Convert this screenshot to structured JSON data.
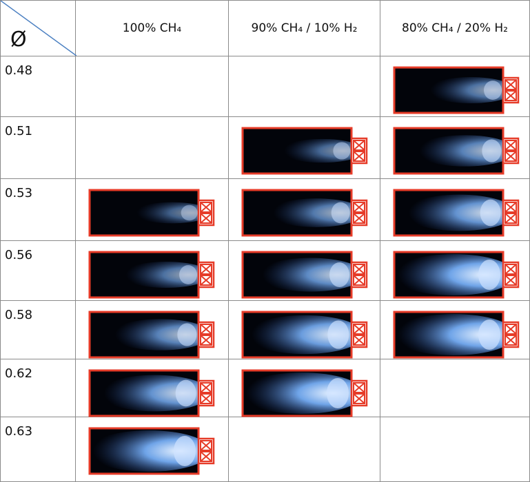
{
  "table": {
    "corner": "Ø",
    "columns": [
      "100% CH₄",
      "90% CH₄ / 10% H₂",
      "80% CH₄ / 20% H₂"
    ],
    "rows": [
      {
        "phi": "0.48",
        "flames": [
          false,
          false,
          true
        ]
      },
      {
        "phi": "0.51",
        "flames": [
          false,
          true,
          true
        ]
      },
      {
        "phi": "0.53",
        "flames": [
          true,
          true,
          true
        ]
      },
      {
        "phi": "0.56",
        "flames": [
          true,
          true,
          true
        ]
      },
      {
        "phi": "0.58",
        "flames": [
          true,
          true,
          true
        ]
      },
      {
        "phi": "0.62",
        "flames": [
          true,
          true,
          false
        ]
      },
      {
        "phi": "0.63",
        "flames": [
          true,
          false,
          false
        ]
      }
    ]
  }
}
